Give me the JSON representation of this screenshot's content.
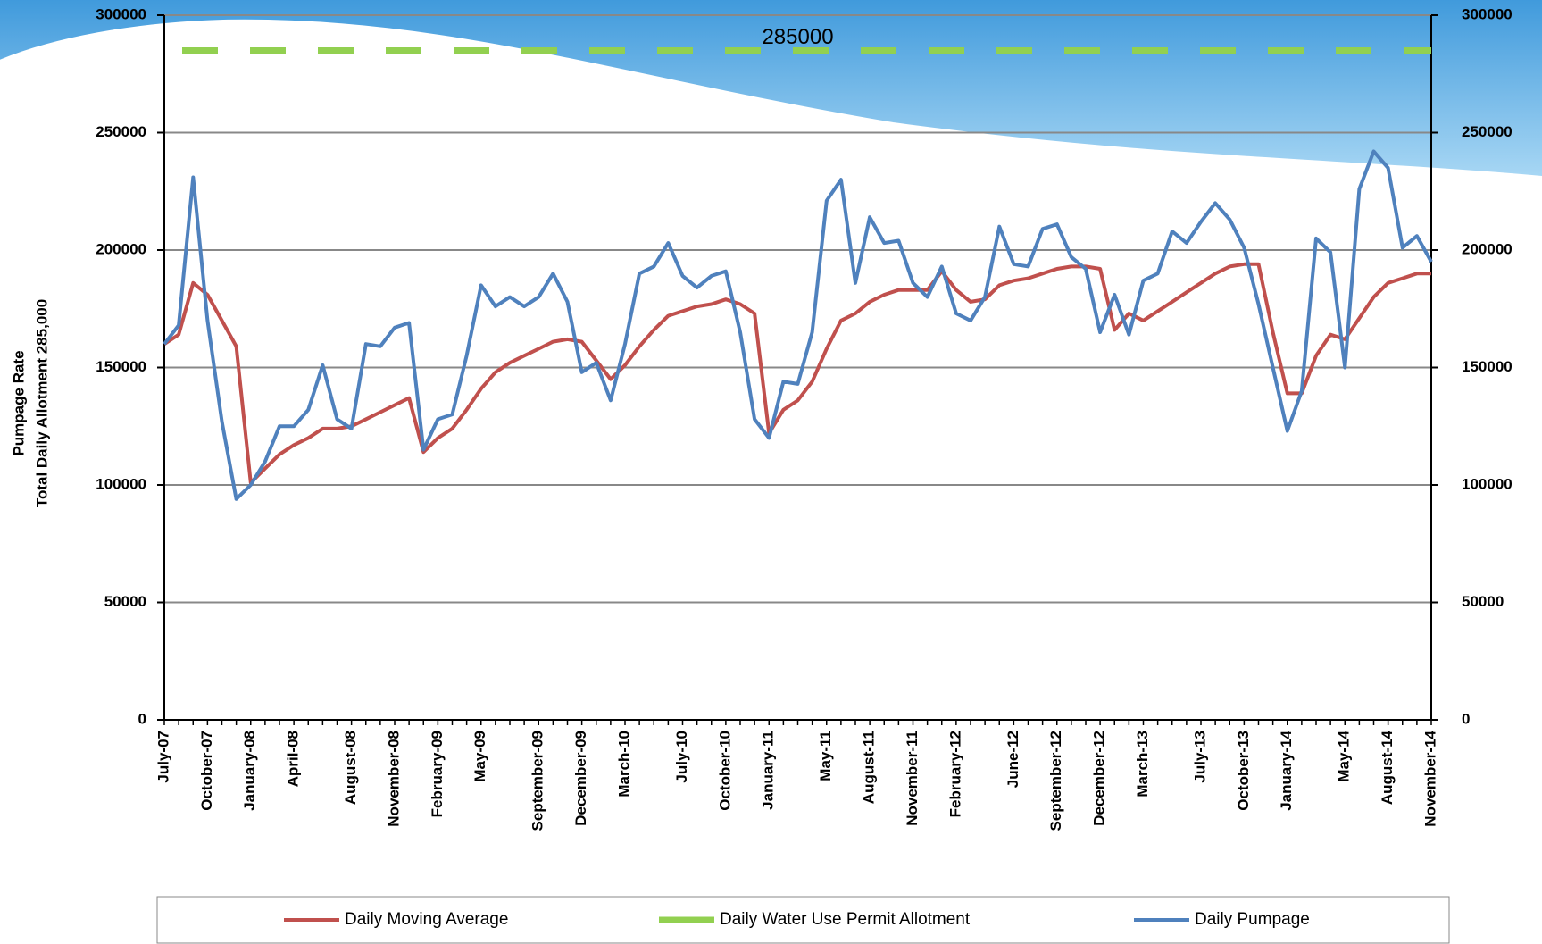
{
  "chart_data": {
    "type": "line",
    "y_label_lines": [
      "Pumpage Rate",
      "Total Daily Allotment 285,000"
    ],
    "categories": [
      "July-07",
      null,
      null,
      "October-07",
      null,
      null,
      "January-08",
      null,
      null,
      "April-08",
      null,
      null,
      null,
      "August-08",
      null,
      null,
      "November-08",
      null,
      null,
      "February-09",
      null,
      null,
      "May-09",
      null,
      null,
      null,
      "September-09",
      null,
      null,
      "December-09",
      null,
      null,
      "March-10",
      null,
      null,
      null,
      "July-10",
      null,
      null,
      "October-10",
      null,
      null,
      "January-11",
      null,
      null,
      null,
      "May-11",
      null,
      null,
      "August-11",
      null,
      null,
      "November-11",
      null,
      null,
      "February-12",
      null,
      null,
      null,
      "June-12",
      null,
      null,
      "September-12",
      null,
      null,
      "December-12",
      null,
      null,
      "March-13",
      null,
      null,
      null,
      "July-13",
      null,
      null,
      "October-13",
      null,
      null,
      "January-14",
      null,
      null,
      null,
      "May-14",
      null,
      null,
      "August-14",
      null,
      null,
      "November-14"
    ],
    "series": [
      {
        "name": "Daily Moving Average",
        "color": "#c0504d",
        "values": [
          160000,
          164000,
          186000,
          181000,
          170000,
          159000,
          101000,
          107000,
          113000,
          117000,
          120000,
          124000,
          124000,
          125000,
          128000,
          131000,
          134000,
          137000,
          114000,
          120000,
          124000,
          132000,
          141000,
          148000,
          152000,
          155000,
          158000,
          161000,
          162000,
          161000,
          153000,
          145000,
          151000,
          159000,
          166000,
          172000,
          174000,
          176000,
          177000,
          179000,
          177000,
          173000,
          122000,
          132000,
          136000,
          144000,
          158000,
          170000,
          173000,
          178000,
          181000,
          183000,
          183000,
          183000,
          191000,
          183000,
          178000,
          179000,
          185000,
          187000,
          188000,
          190000,
          192000,
          193000,
          193000,
          192000,
          166000,
          173000,
          170000,
          174000,
          178000,
          182000,
          186000,
          190000,
          193000,
          194000,
          194000,
          165000,
          139000,
          139000,
          155000,
          164000,
          162000,
          171000,
          180000,
          186000,
          188000,
          190000,
          190000
        ]
      },
      {
        "name": "Daily Pumpage",
        "color": "#4f81bd",
        "values": [
          160000,
          168000,
          231000,
          170000,
          127000,
          94000,
          100000,
          110000,
          125000,
          125000,
          132000,
          151000,
          128000,
          124000,
          160000,
          159000,
          167000,
          169000,
          115000,
          128000,
          130000,
          155000,
          185000,
          176000,
          180000,
          176000,
          180000,
          190000,
          178000,
          148000,
          152000,
          136000,
          160000,
          190000,
          193000,
          203000,
          189000,
          184000,
          189000,
          191000,
          165000,
          128000,
          120000,
          144000,
          143000,
          165000,
          221000,
          230000,
          186000,
          214000,
          203000,
          204000,
          186000,
          180000,
          193000,
          173000,
          170000,
          180000,
          210000,
          194000,
          193000,
          209000,
          211000,
          197000,
          192000,
          165000,
          181000,
          164000,
          187000,
          190000,
          208000,
          203000,
          212000,
          220000,
          213000,
          201000,
          177000,
          150000,
          123000,
          140000,
          205000,
          199000,
          150000,
          226000,
          242000,
          235000,
          201000,
          206000,
          195000
        ]
      }
    ],
    "allotment": {
      "name": "Daily Water Use Permit Allotment",
      "color": "#92d050",
      "value": 285000
    },
    "ylim": [
      0,
      300000
    ],
    "yticks": [
      0,
      50000,
      100000,
      150000,
      200000,
      250000,
      300000
    ],
    "y2lim": [
      0,
      300000
    ],
    "y2ticks": [
      0,
      50000,
      100000,
      150000,
      200000,
      250000,
      300000
    ],
    "grid": true,
    "legend": "bottom"
  }
}
